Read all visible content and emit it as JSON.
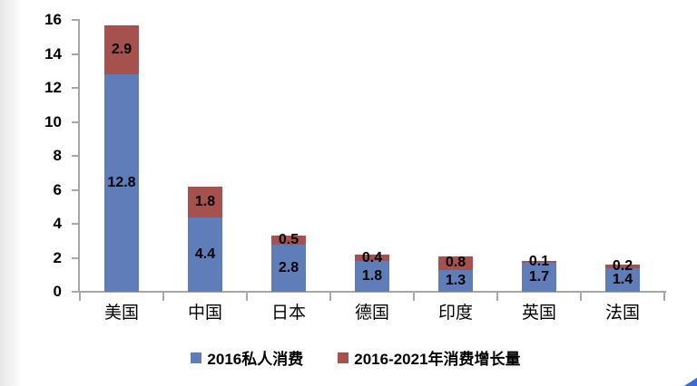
{
  "chart_data": {
    "type": "bar",
    "stacked": true,
    "title": "",
    "xlabel": "",
    "ylabel": "",
    "categories": [
      "美国",
      "中国",
      "日本",
      "德国",
      "印度",
      "英国",
      "法国"
    ],
    "series": [
      {
        "name": "2016私人消费",
        "color": "#5F7DB9",
        "values": [
          12.8,
          4.4,
          2.8,
          1.8,
          1.3,
          1.7,
          1.4
        ]
      },
      {
        "name": "2016-2021年消费增长量",
        "color": "#A5514E",
        "values": [
          2.9,
          1.8,
          0.5,
          0.4,
          0.8,
          0.1,
          0.2
        ]
      }
    ],
    "ylim": [
      0,
      16
    ],
    "ytick_step": 2,
    "ytick_labels": [
      "0",
      "2",
      "4",
      "6",
      "8",
      "10",
      "12",
      "14",
      "16"
    ],
    "value_labels_shown": true,
    "grid": false,
    "legend_position": "bottom",
    "axis_color": "#A6A6A6",
    "text_color": "#000000"
  },
  "legend": {
    "item1": "2016私人消费",
    "item2": "2016-2021年消费增长量"
  },
  "decor": {
    "corner_accent_color": "#4169D1"
  }
}
